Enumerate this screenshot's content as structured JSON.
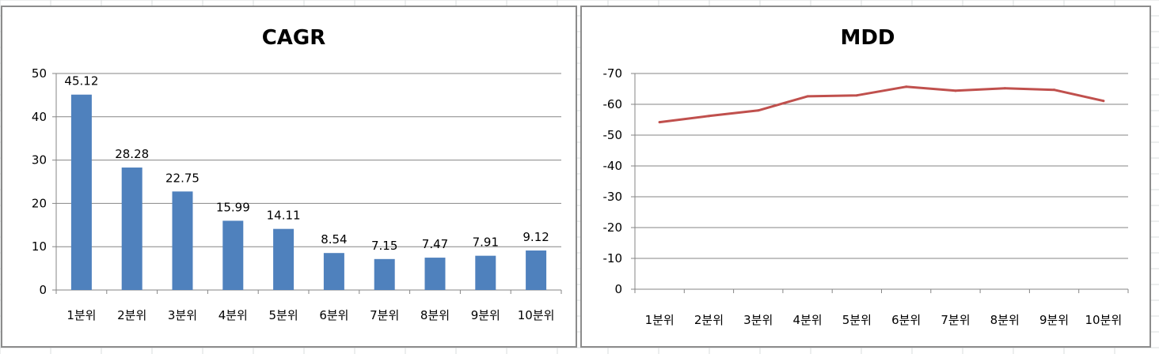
{
  "chart_data": [
    {
      "type": "bar",
      "title": "CAGR",
      "categories": [
        "1분위",
        "2분위",
        "3분위",
        "4분위",
        "5분위",
        "6분위",
        "7분위",
        "8분위",
        "9분위",
        "10분위"
      ],
      "values": [
        45.12,
        28.28,
        22.75,
        15.99,
        14.11,
        8.54,
        7.15,
        7.47,
        7.91,
        9.12
      ],
      "ylim": [
        0,
        50
      ],
      "yticks": [
        "0",
        "10",
        "20",
        "30",
        "40",
        "50"
      ],
      "grid": true,
      "data_labels": true,
      "legend": "none",
      "color": "#4f81bd"
    },
    {
      "type": "line",
      "title": "MDD",
      "categories": [
        "1분위",
        "2분위",
        "3분위",
        "4분위",
        "5분위",
        "6분위",
        "7분위",
        "8분위",
        "9분위",
        "10분위"
      ],
      "values": [
        -54.2,
        -56.2,
        -58.0,
        -62.6,
        -62.9,
        -65.7,
        -64.4,
        -65.2,
        -64.7,
        -61.1
      ],
      "ylim": [
        0,
        -70
      ],
      "yaxis_reversed": true,
      "yticks": [
        "0",
        "-10",
        "-20",
        "-30",
        "-40",
        "-50",
        "-60",
        "-70"
      ],
      "grid": true,
      "legend": "none",
      "color": "#c0504d"
    }
  ]
}
